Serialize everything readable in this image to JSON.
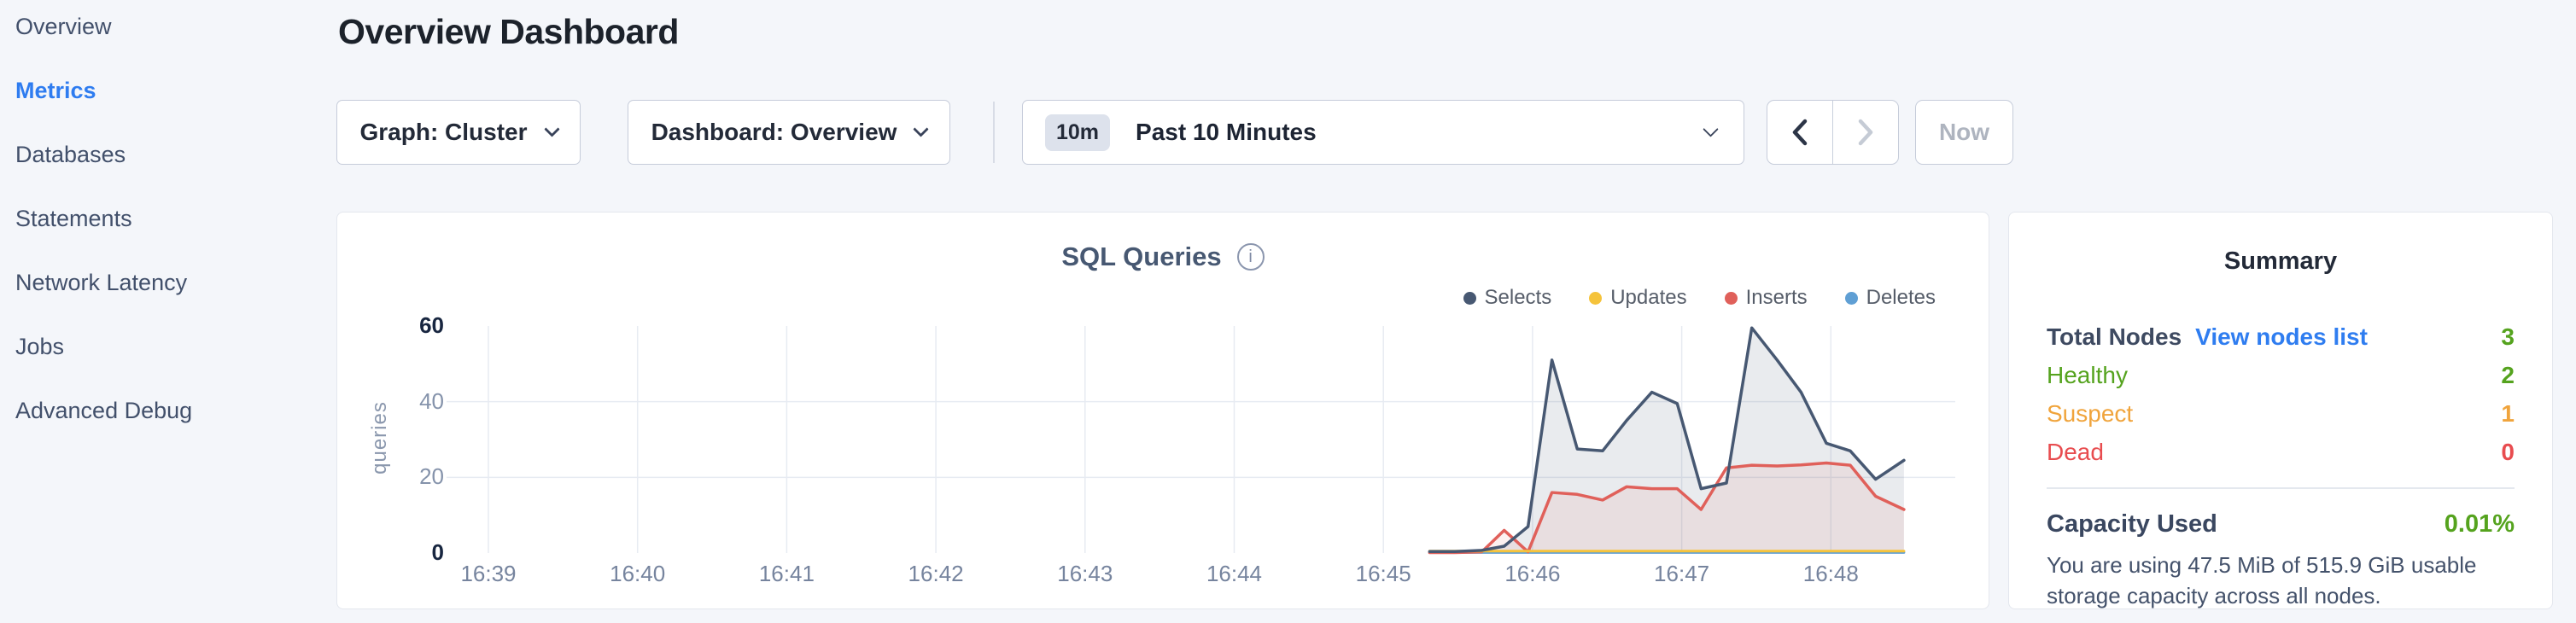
{
  "sidebar": {
    "items": [
      {
        "label": "Overview",
        "active": false
      },
      {
        "label": "Metrics",
        "active": true
      },
      {
        "label": "Databases",
        "active": false
      },
      {
        "label": "Statements",
        "active": false
      },
      {
        "label": "Network Latency",
        "active": false
      },
      {
        "label": "Jobs",
        "active": false
      },
      {
        "label": "Advanced Debug",
        "active": false
      }
    ],
    "active_color": "#2e7cf0"
  },
  "header": {
    "title": "Overview Dashboard"
  },
  "toolbar": {
    "graph_dropdown": "Graph: Cluster",
    "dashboard_dropdown": "Dashboard: Overview",
    "time_badge": "10m",
    "time_label": "Past 10 Minutes",
    "now_label": "Now"
  },
  "chart_data": {
    "type": "line",
    "title": "SQL Queries",
    "info_icon": "i",
    "ylabel": "queries",
    "ylim": [
      0,
      60
    ],
    "grid_y": [
      20,
      40
    ],
    "yticks": [
      {
        "v": 0,
        "label": "0",
        "strong": true
      },
      {
        "v": 20,
        "label": "20",
        "strong": false
      },
      {
        "v": 40,
        "label": "40",
        "strong": false
      },
      {
        "v": 60,
        "label": "60",
        "strong": true
      }
    ],
    "xticks": [
      "16:39",
      "16:40",
      "16:41",
      "16:42",
      "16:43",
      "16:44",
      "16:45",
      "16:46",
      "16:47",
      "16:48"
    ],
    "legend_position": "top-right",
    "grid_color": "#e7ebf2",
    "series": [
      {
        "name": "Selects",
        "color": "#475872",
        "fill": "rgba(99,112,136,0.14)",
        "width": 3.5,
        "points": [
          [
            6.31,
            0.4
          ],
          [
            6.48,
            0.4
          ],
          [
            6.66,
            0.7
          ],
          [
            6.81,
            1.8
          ],
          [
            6.97,
            7
          ],
          [
            7.13,
            51
          ],
          [
            7.3,
            27.5
          ],
          [
            7.47,
            27
          ],
          [
            7.63,
            35
          ],
          [
            7.8,
            42.5
          ],
          [
            7.97,
            39.5
          ],
          [
            8.13,
            17
          ],
          [
            8.3,
            18.5
          ],
          [
            8.47,
            59.5
          ],
          [
            8.64,
            51
          ],
          [
            8.8,
            42.5
          ],
          [
            8.97,
            29
          ],
          [
            9.13,
            27
          ],
          [
            9.3,
            19.5
          ],
          [
            9.49,
            24.5
          ]
        ]
      },
      {
        "name": "Updates",
        "color": "#f5c33b",
        "fill": null,
        "width": 3,
        "points": [
          [
            6.31,
            0.5
          ],
          [
            9.49,
            0.5
          ]
        ]
      },
      {
        "name": "Inserts",
        "color": "#e0605a",
        "fill": "rgba(224,96,90,0.09)",
        "width": 3.5,
        "points": [
          [
            6.31,
            0.1
          ],
          [
            6.48,
            0.1
          ],
          [
            6.66,
            0.3
          ],
          [
            6.81,
            6
          ],
          [
            6.97,
            0.3
          ],
          [
            7.13,
            16
          ],
          [
            7.3,
            15.5
          ],
          [
            7.47,
            14
          ],
          [
            7.63,
            17.5
          ],
          [
            7.8,
            17
          ],
          [
            7.97,
            17
          ],
          [
            8.13,
            11.5
          ],
          [
            8.3,
            22.5
          ],
          [
            8.47,
            23.2
          ],
          [
            8.64,
            23
          ],
          [
            8.8,
            23.3
          ],
          [
            8.97,
            23.8
          ],
          [
            9.13,
            23.2
          ],
          [
            9.3,
            15
          ],
          [
            9.49,
            11.5
          ]
        ]
      },
      {
        "name": "Deletes",
        "color": "#5f9fd4",
        "fill": null,
        "width": 3,
        "points": [
          [
            6.31,
            0.15
          ],
          [
            9.49,
            0.15
          ]
        ]
      }
    ]
  },
  "summary": {
    "title": "Summary",
    "rows": [
      {
        "label": "Total Nodes",
        "label_color": "#3e4a61",
        "label_bold": true,
        "link": "View nodes list",
        "link_color": "#2f7df0",
        "value": "3",
        "value_color": "#55a31e"
      },
      {
        "label": "Healthy",
        "label_color": "#55a31e",
        "label_bold": false,
        "link": null,
        "value": "2",
        "value_color": "#55a31e"
      },
      {
        "label": "Suspect",
        "label_color": "#f0a43c",
        "label_bold": false,
        "link": null,
        "value": "1",
        "value_color": "#f0a43c"
      },
      {
        "label": "Dead",
        "label_color": "#e84c4f",
        "label_bold": false,
        "link": null,
        "value": "0",
        "value_color": "#e84c4f"
      }
    ],
    "capacity": {
      "label": "Capacity Used",
      "label_color": "#3a4760",
      "value": "0.01%",
      "value_color": "#55a31e",
      "description": "You are using 47.5 MiB of 515.9 GiB usable storage capacity across all nodes."
    }
  }
}
